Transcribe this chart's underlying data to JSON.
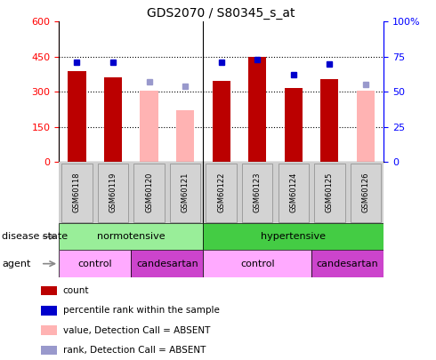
{
  "title": "GDS2070 / S80345_s_at",
  "samples": [
    "GSM60118",
    "GSM60119",
    "GSM60120",
    "GSM60121",
    "GSM60122",
    "GSM60123",
    "GSM60124",
    "GSM60125",
    "GSM60126"
  ],
  "count_values": [
    390,
    360,
    null,
    null,
    345,
    450,
    315,
    355,
    null
  ],
  "count_absent": [
    null,
    null,
    305,
    220,
    null,
    null,
    null,
    null,
    305
  ],
  "percentile_present": [
    71,
    71,
    null,
    null,
    71,
    73,
    62,
    70,
    null
  ],
  "percentile_absent": [
    null,
    null,
    57,
    54,
    null,
    null,
    null,
    null,
    55
  ],
  "left_ylim": [
    0,
    600
  ],
  "right_ylim": [
    0,
    100
  ],
  "left_yticks": [
    0,
    150,
    300,
    450,
    600
  ],
  "right_yticks": [
    0,
    25,
    50,
    75,
    100
  ],
  "right_yticklabels": [
    "0",
    "25",
    "50",
    "75",
    "100%"
  ],
  "count_color": "#bb0000",
  "absent_bar_color": "#ffb3b3",
  "percentile_present_color": "#0000cc",
  "percentile_absent_color": "#9999cc",
  "white_bg": "#ffffff",
  "plot_bg": "#ffffff",
  "tick_area_color": "#d0d0d0",
  "disease_norm_color": "#99ee99",
  "disease_hyper_color": "#44cc44",
  "agent_control_color": "#ffaaff",
  "agent_candesartan_color": "#cc44cc",
  "legend_items": [
    {
      "label": "count",
      "color": "#bb0000"
    },
    {
      "label": "percentile rank within the sample",
      "color": "#0000cc"
    },
    {
      "label": "value, Detection Call = ABSENT",
      "color": "#ffb3b3"
    },
    {
      "label": "rank, Detection Call = ABSENT",
      "color": "#9999cc"
    }
  ]
}
